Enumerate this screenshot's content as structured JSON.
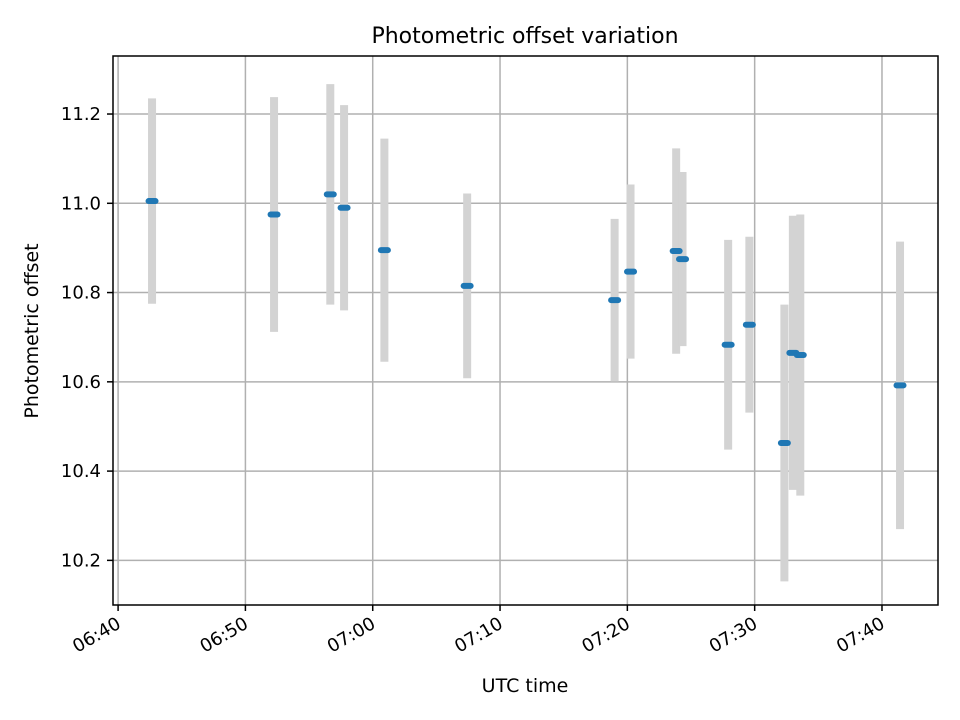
{
  "chart_data": {
    "type": "scatter",
    "title": "Photometric offset variation",
    "xlabel": "UTC time",
    "ylabel": "Photometric offset",
    "xlim": [
      "06:39.6",
      "07:44.4"
    ],
    "ylim": [
      10.1,
      11.33
    ],
    "grid": true,
    "x_ticks": [
      "06:40",
      "06:50",
      "07:00",
      "07:10",
      "07:20",
      "07:30",
      "07:40"
    ],
    "y_ticks": [
      "10.2",
      "10.4",
      "10.6",
      "10.8",
      "11.0",
      "11.2"
    ],
    "y_tick_values": [
      10.2,
      10.4,
      10.6,
      10.8,
      11.0,
      11.2
    ],
    "marker_color": "#1f77b4",
    "errorbar_color": "#d3d3d3",
    "points": [
      {
        "time": "06:42:40",
        "y": 11.005,
        "err": 0.23
      },
      {
        "time": "06:52:15",
        "y": 10.975,
        "err": 0.263
      },
      {
        "time": "06:56:40",
        "y": 11.02,
        "err": 0.247
      },
      {
        "time": "06:57:45",
        "y": 10.99,
        "err": 0.23
      },
      {
        "time": "07:00:55",
        "y": 10.895,
        "err": 0.25
      },
      {
        "time": "07:07:25",
        "y": 10.815,
        "err": 0.207
      },
      {
        "time": "07:19:00",
        "y": 10.783,
        "err": 0.182
      },
      {
        "time": "07:20:15",
        "y": 10.847,
        "err": 0.195
      },
      {
        "time": "07:23:50",
        "y": 10.893,
        "err": 0.23
      },
      {
        "time": "07:24:20",
        "y": 10.875,
        "err": 0.195
      },
      {
        "time": "07:27:55",
        "y": 10.683,
        "err": 0.235
      },
      {
        "time": "07:29:35",
        "y": 10.728,
        "err": 0.197
      },
      {
        "time": "07:32:20",
        "y": 10.463,
        "err": 0.31
      },
      {
        "time": "07:33:00",
        "y": 10.665,
        "err": 0.307
      },
      {
        "time": "07:33:35",
        "y": 10.66,
        "err": 0.315
      },
      {
        "time": "07:41:25",
        "y": 10.592,
        "err": 0.322
      }
    ]
  }
}
